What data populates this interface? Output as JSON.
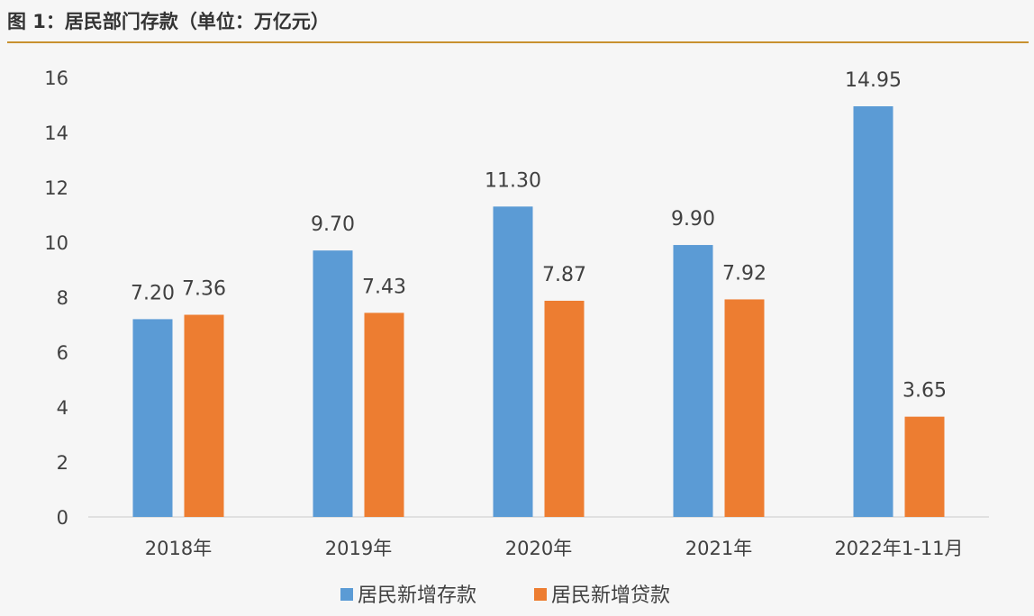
{
  "figure_title": "图 1：居民部门存款（单位：万亿元）",
  "colors": {
    "rule": "#c8912f",
    "deposit": "#5b9bd5",
    "loan": "#ed7d31",
    "axis": "#d9d9d9",
    "text": "#404040"
  },
  "chart_data": {
    "type": "bar",
    "title": "",
    "xlabel": "",
    "ylabel": "",
    "categories": [
      "2018年",
      "2019年",
      "2020年",
      "2021年",
      "2022年1-11月"
    ],
    "series": [
      {
        "name": "居民新增存款",
        "color": "#5b9bd5",
        "values": [
          7.2,
          9.7,
          11.3,
          9.9,
          14.95
        ],
        "labels": [
          "7.20",
          "9.70",
          "11.30",
          "9.90",
          "14.95"
        ]
      },
      {
        "name": "居民新增贷款",
        "color": "#ed7d31",
        "values": [
          7.36,
          7.43,
          7.87,
          7.92,
          3.65
        ],
        "labels": [
          "7.36",
          "7.43",
          "7.87",
          "7.92",
          "3.65"
        ]
      }
    ],
    "ylim": [
      0,
      16
    ],
    "yticks": [
      "0",
      "2",
      "4",
      "6",
      "8",
      "10",
      "12",
      "14",
      "16"
    ],
    "grid": false,
    "legend_position": "bottom-center"
  }
}
